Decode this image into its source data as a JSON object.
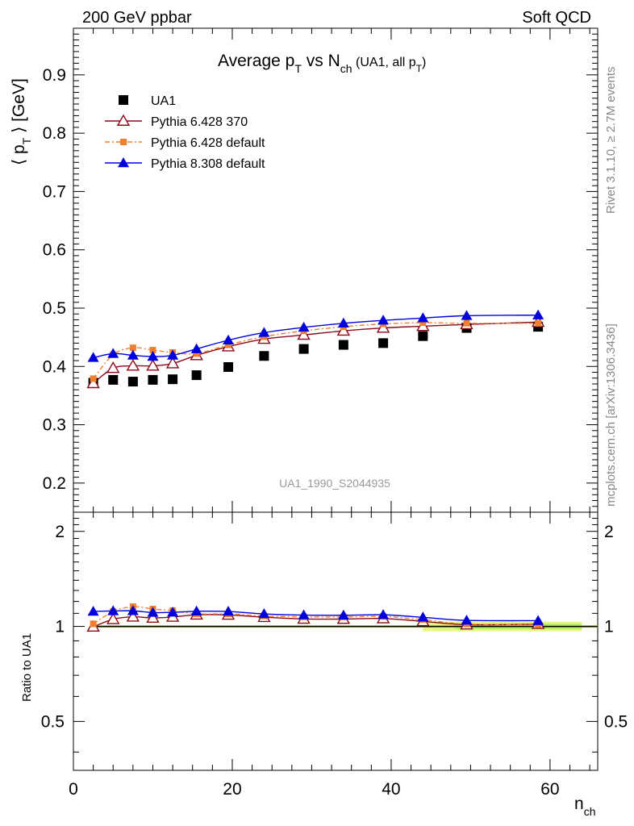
{
  "header": {
    "left": "200 GeV ppbar",
    "right": "Soft QCD"
  },
  "side_labels": {
    "top": "Rivet 3.1.10, ≥ 2.7M events",
    "bottom": "mcplots.cern.ch [arXiv:1306.3436]"
  },
  "chart_data": {
    "type": "line",
    "title": "Average p_T vs N_ch (UA1, all p_T)",
    "title_parts": {
      "prefix": "Average p",
      "sub1": "T",
      "mid": " vs N",
      "sub2": "ch",
      "paren_open": " (UA1, all p",
      "sub3": "T",
      "paren_close": ")"
    },
    "ylabel_parts": {
      "open": "⟨ p",
      "sub": "T",
      "close": " ⟩ [GeV]"
    },
    "xlabel_parts": {
      "main": "n",
      "sub": "ch"
    },
    "watermark": "UA1_1990_S2044935",
    "xlim": [
      0,
      66
    ],
    "ylim": [
      0.15,
      0.98
    ],
    "ratio_ylim": [
      0.35,
      2.3
    ],
    "ratio_ylabel": "Ratio to UA1",
    "x_ticks": [
      0,
      20,
      40,
      60
    ],
    "x_tick_labels": [
      "0",
      "20",
      "40",
      "60"
    ],
    "y_ticks": [
      0.2,
      0.3,
      0.4,
      0.5,
      0.6,
      0.7,
      0.8,
      0.9
    ],
    "y_tick_labels": [
      "0.2",
      "0.3",
      "0.4",
      "0.5",
      "0.6",
      "0.7",
      "0.8",
      "0.9"
    ],
    "ratio_ticks": [
      0.5,
      1,
      2
    ],
    "ratio_tick_labels": [
      "0.5",
      "1",
      "2"
    ],
    "legend_position": "top-left",
    "x": [
      2.5,
      5,
      7.5,
      10,
      12.5,
      15.5,
      19.5,
      24,
      29,
      34,
      39,
      44,
      49.5,
      58.5
    ],
    "series": [
      {
        "name": "UA1",
        "color": "#000000",
        "marker": "square",
        "values": [
          0.372,
          0.377,
          0.374,
          0.377,
          0.378,
          0.385,
          0.399,
          0.418,
          0.43,
          0.437,
          0.44,
          0.452,
          0.466,
          0.468
        ]
      },
      {
        "name": "Pythia 6.428 370",
        "color": "#8b0a1a",
        "marker": "triangle-open",
        "values": [
          0.371,
          0.397,
          0.401,
          0.401,
          0.405,
          0.419,
          0.434,
          0.447,
          0.454,
          0.461,
          0.466,
          0.469,
          0.472,
          0.476
        ]
      },
      {
        "name": "Pythia 6.428 default",
        "color": "#f08030",
        "marker": "square-small",
        "values": [
          0.379,
          0.42,
          0.432,
          0.428,
          0.424,
          0.422,
          0.437,
          0.451,
          0.461,
          0.468,
          0.473,
          0.475,
          0.474,
          0.474
        ]
      },
      {
        "name": "Pythia 8.308 default",
        "color": "#0000dd",
        "marker": "triangle-filled",
        "values": [
          0.415,
          0.422,
          0.419,
          0.417,
          0.419,
          0.43,
          0.445,
          0.458,
          0.467,
          0.474,
          0.479,
          0.483,
          0.487,
          0.488
        ]
      }
    ],
    "ratio_band": {
      "x_start": 44,
      "x_end": 64,
      "half_width": 0.035,
      "color": "#e8f58a",
      "inner_color": "#aef06a"
    }
  }
}
